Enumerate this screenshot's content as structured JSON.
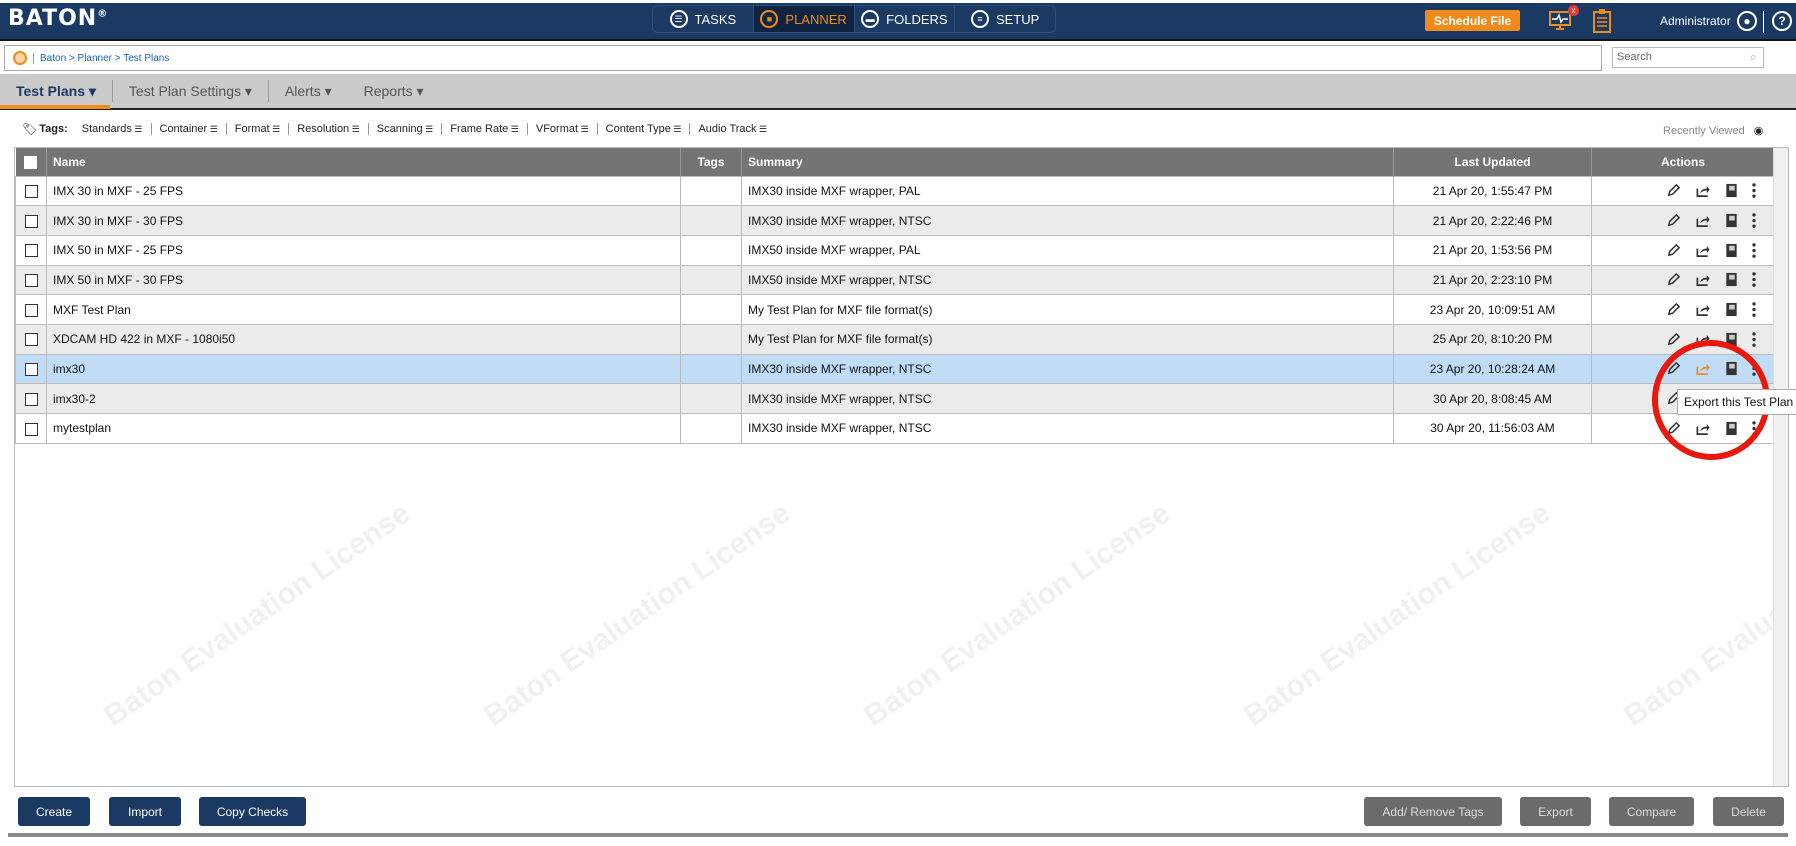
{
  "header": {
    "logo": "BATON",
    "nav": [
      {
        "label": "TASKS",
        "icon": "list-icon"
      },
      {
        "label": "PLANNER",
        "icon": "briefcase-icon",
        "active": true
      },
      {
        "label": "FOLDERS",
        "icon": "folder-icon"
      },
      {
        "label": "SETUP",
        "icon": "document-icon"
      }
    ],
    "schedule_label": "Schedule File",
    "user": "Administrator",
    "monitor_badge": "x"
  },
  "breadcrumb": "Baton > Planner > Test Plans",
  "search": {
    "placeholder": "Search"
  },
  "tabs": [
    "Test Plans",
    "Test Plan Settings",
    "Alerts",
    "Reports"
  ],
  "tags": {
    "label": "Tags:",
    "items": [
      "Standards",
      "Container",
      "Format",
      "Resolution",
      "Scanning",
      "Frame Rate",
      "VFormat",
      "Content Type",
      "Audio Track"
    ]
  },
  "recently_viewed": "Recently Viewed",
  "table": {
    "columns": [
      "Name",
      "Tags",
      "Summary",
      "Last Updated",
      "Actions"
    ],
    "rows": [
      {
        "name": "IMX 30 in MXF - 25 FPS",
        "tags": "",
        "summary": "IMX30 inside MXF wrapper, PAL",
        "updated": "21 Apr 20, 1:55:47 PM"
      },
      {
        "name": "IMX 30 in MXF - 30 FPS",
        "tags": "",
        "summary": "IMX30 inside MXF wrapper, NTSC",
        "updated": "21 Apr 20, 2:22:46 PM"
      },
      {
        "name": "IMX 50 in MXF - 25 FPS",
        "tags": "",
        "summary": "IMX50 inside MXF wrapper, PAL",
        "updated": "21 Apr 20, 1:53:56 PM"
      },
      {
        "name": "IMX 50 in MXF - 30 FPS",
        "tags": "",
        "summary": "IMX50 inside MXF wrapper, NTSC",
        "updated": "21 Apr 20, 2:23:10 PM"
      },
      {
        "name": "MXF Test Plan",
        "tags": "",
        "summary": "My Test Plan for MXF file format(s)",
        "updated": "23 Apr 20, 10:09:51 AM"
      },
      {
        "name": "XDCAM HD 422  in MXF - 1080i50",
        "tags": "",
        "summary": "My Test Plan for MXF file format(s)",
        "updated": "25 Apr 20, 8:10:20 PM"
      },
      {
        "name": "imx30",
        "tags": "",
        "summary": "IMX30 inside MXF wrapper, NTSC",
        "updated": "23 Apr 20, 10:28:24 AM",
        "selected": true
      },
      {
        "name": "imx30-2",
        "tags": "",
        "summary": "IMX30 inside MXF wrapper, NTSC",
        "updated": "30 Apr 20, 8:08:45 AM"
      },
      {
        "name": "mytestplan",
        "tags": "",
        "summary": "IMX30 inside MXF wrapper, NTSC",
        "updated": "30 Apr 20, 11:56:03 AM"
      }
    ]
  },
  "tooltip": "Export this Test Plan",
  "watermark": "Baton Evaluation License",
  "footer": {
    "left": [
      "Create",
      "Import",
      "Copy Checks"
    ],
    "right": [
      "Add/ Remove Tags",
      "Export",
      "Compare",
      "Delete"
    ]
  },
  "colors": {
    "header": "#1b3a63",
    "accent": "#ef8a1b",
    "selected_row": "#c0dcf7",
    "annotation": "#e8180c"
  }
}
